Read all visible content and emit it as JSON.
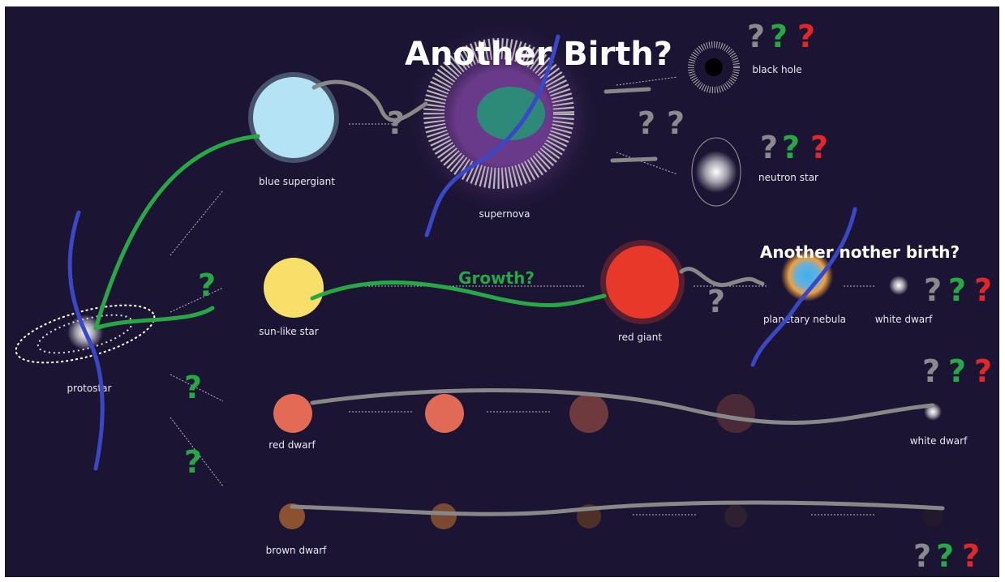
{
  "annotations": {
    "another_birth": "Another Birth?",
    "another_nother_birth": "Another nother birth?",
    "growth": "Growth?"
  },
  "labels": {
    "protostar": "protostar",
    "blue_supergiant": "blue supergiant",
    "supernova": "supernova",
    "black_hole": "black hole",
    "neutron_star": "neutron star",
    "sun_like_star": "sun-like star",
    "red_giant": "red giant",
    "planetary_nebula": "planetary nebula",
    "white_dwarf_upper": "white dwarf",
    "red_dwarf": "red dwarf",
    "white_dwarf_lower": "white dwarf",
    "brown_dwarf": "brown dwarf"
  },
  "question_marks": {
    "black_hole": [
      "?",
      "?",
      "?"
    ],
    "above_neutron_star": [
      "?",
      "?"
    ],
    "neutron_star": [
      "?",
      "?",
      "?"
    ],
    "supergiant_path": [
      "?"
    ],
    "sun_like_path": [
      "?"
    ],
    "red_giant_path": [
      "?"
    ],
    "white_dwarf_upper": [
      "?",
      "?",
      "?"
    ],
    "red_dwarf_path": [
      "?"
    ],
    "brown_dwarf_path": [
      "?"
    ],
    "white_dwarf_lower": [
      "?",
      "?",
      "?"
    ],
    "brown_dwarf_end": [
      "?",
      "?",
      "?"
    ]
  }
}
